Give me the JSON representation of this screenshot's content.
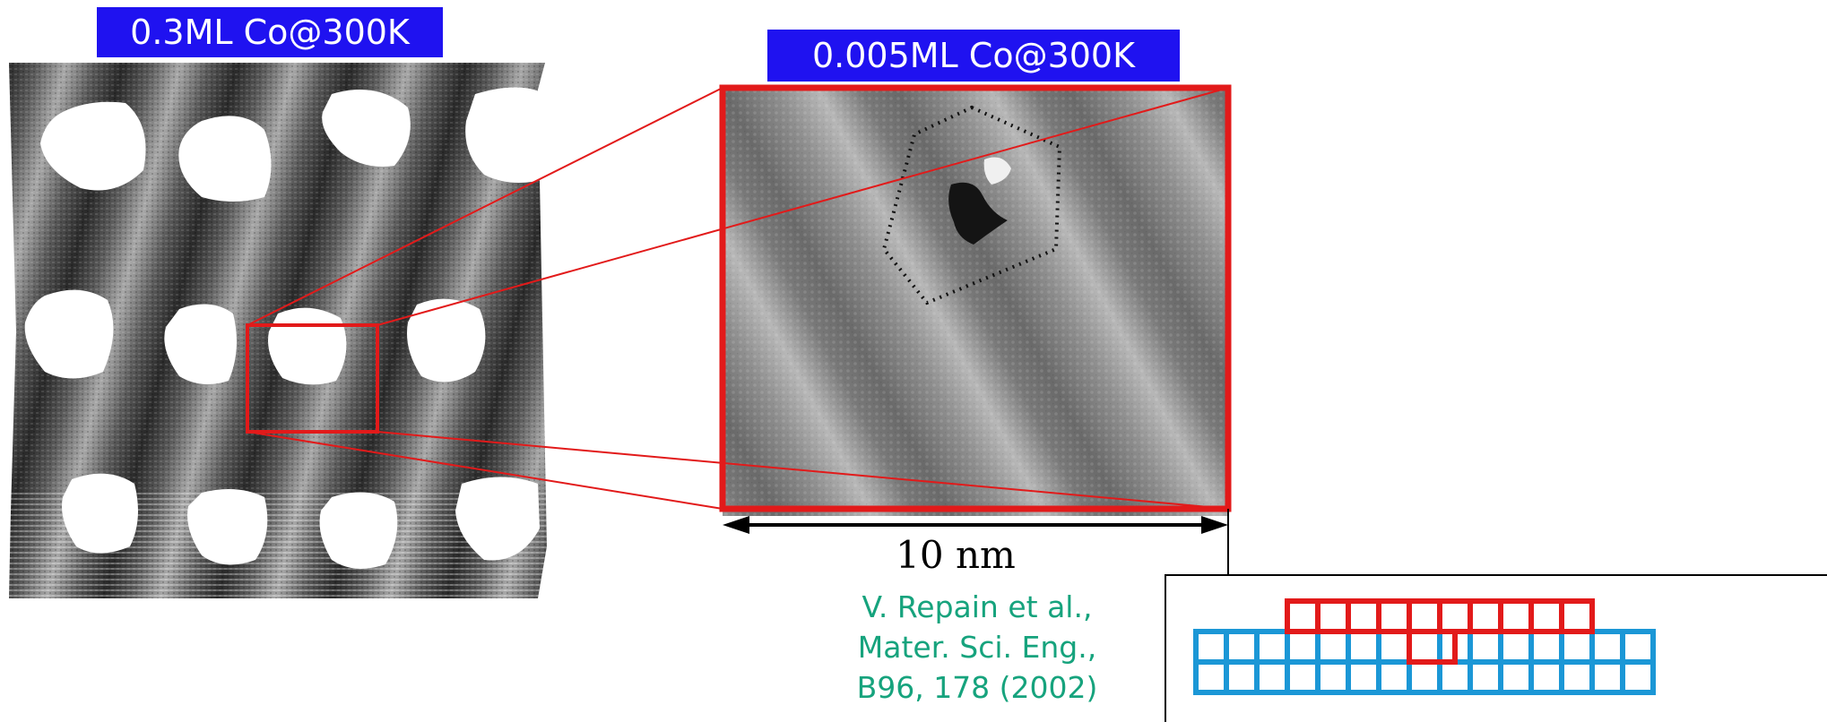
{
  "labels": {
    "left": "0.3ML Co@300K",
    "right": "0.005ML Co@300K"
  },
  "scale_bar": {
    "text": "10 nm"
  },
  "citation": {
    "line1": "V. Repain et al.,",
    "line2": "Mater. Sci. Eng.,",
    "line3": "B96, 178 (2002)"
  },
  "colors": {
    "label_bg": "#1f12f0",
    "highlight_red": "#e21a1a",
    "lattice_blue": "#1b97d6",
    "citation_green": "#16a37d"
  }
}
